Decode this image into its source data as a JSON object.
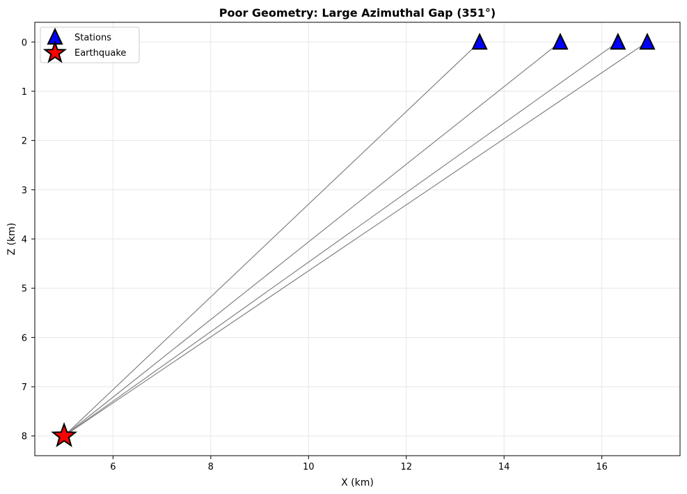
{
  "chart_data": {
    "type": "scatter",
    "title": "Poor Geometry: Large Azimuthal Gap (351°)",
    "xlabel": "X (km)",
    "ylabel": "Z (km)",
    "xlim": [
      4.4,
      17.6
    ],
    "ylim": [
      8.4,
      -0.4
    ],
    "y_inverted": true,
    "x_ticks": [
      6,
      8,
      10,
      12,
      14,
      16
    ],
    "y_ticks": [
      0,
      1,
      2,
      3,
      4,
      5,
      6,
      7,
      8
    ],
    "grid": true,
    "legend_position": "top-left",
    "series": [
      {
        "name": "Stations",
        "marker": "triangle",
        "color": "#0000ff",
        "points": [
          {
            "x": 13.5,
            "z": 0
          },
          {
            "x": 15.15,
            "z": 0
          },
          {
            "x": 16.33,
            "z": 0
          },
          {
            "x": 16.93,
            "z": 0
          }
        ]
      },
      {
        "name": "Earthquake",
        "marker": "star",
        "color": "#ff0000",
        "points": [
          {
            "x": 5.0,
            "z": 8.0
          }
        ]
      }
    ],
    "ray_color": "#808080"
  }
}
